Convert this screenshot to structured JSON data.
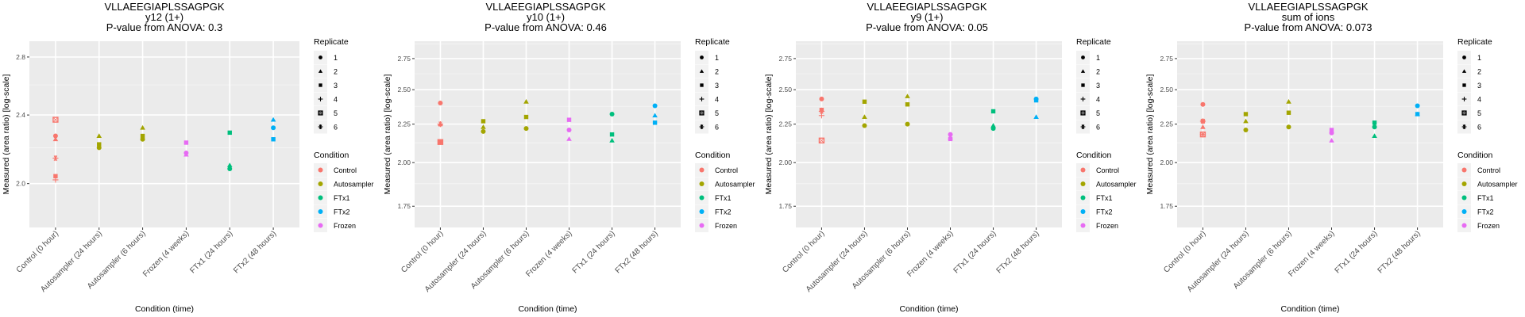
{
  "chart_data": {
    "shared": {
      "categories": [
        "Control (0 hour)",
        "Autosampler (24 hours)",
        "Autosampler (6 hours)",
        "Frozen (4 weeks)",
        "FTx1 (24 hours)",
        "FTx2 (48 hours)"
      ],
      "category_condition": [
        "Control",
        "Autosampler",
        "Autosampler",
        "Frozen",
        "FTx1",
        "FTx2"
      ],
      "xlabel": "Condition (time)",
      "ylabel": "Measured (area ratio) [log-scale]",
      "grid": true,
      "legend_placement": "right",
      "legends": {
        "replicate": {
          "title": "Replicate",
          "items": [
            {
              "label": "1",
              "shape": "circle"
            },
            {
              "label": "2",
              "shape": "triangle"
            },
            {
              "label": "3",
              "shape": "square"
            },
            {
              "label": "4",
              "shape": "plus"
            },
            {
              "label": "5",
              "shape": "square-cross"
            },
            {
              "label": "6",
              "shape": "asterisk"
            }
          ]
        },
        "condition": {
          "title": "Condition",
          "items": [
            {
              "label": "Control",
              "color": "#F8766D"
            },
            {
              "label": "Autosampler",
              "color": "#A3A500"
            },
            {
              "label": "FTx1",
              "color": "#00BF7D"
            },
            {
              "label": "FTx2",
              "color": "#00B0F6"
            },
            {
              "label": "Frozen",
              "color": "#E76BF3"
            }
          ]
        }
      }
    },
    "panels": [
      {
        "type": "scatter",
        "title": [
          "VLLAEEGIAPLSSAGPGK",
          "y12 (1+)",
          "P-value from ANOVA: 0.3"
        ],
        "yscale": "log",
        "ylim": [
          1.78,
          2.92
        ],
        "yticks": [
          2.0,
          2.4,
          2.8
        ],
        "ytick_labels": [
          "2.0",
          "2.4",
          "2.8"
        ],
        "yminor": [
          2.2,
          2.6
        ],
        "points": [
          [
            [
              1,
              2.27
            ],
            [
              2,
              2.25
            ],
            [
              3,
              2.04
            ],
            [
              4,
              2.02
            ],
            [
              5,
              2.37
            ],
            [
              6,
              2.14
            ]
          ],
          [
            [
              1,
              2.2
            ],
            [
              2,
              2.27
            ],
            [
              3,
              2.22
            ]
          ],
          [
            [
              1,
              2.25
            ],
            [
              2,
              2.32
            ],
            [
              3,
              2.27
            ]
          ],
          [
            [
              1,
              2.17
            ],
            [
              2,
              2.16
            ],
            [
              3,
              2.23
            ]
          ],
          [
            [
              1,
              2.08
            ],
            [
              2,
              2.1
            ],
            [
              3,
              2.29
            ]
          ],
          [
            [
              1,
              2.32
            ],
            [
              2,
              2.37
            ],
            [
              3,
              2.25
            ]
          ]
        ]
      },
      {
        "type": "scatter",
        "title": [
          "VLLAEEGIAPLSSAGPGK",
          "y10 (1+)",
          "P-value from ANOVA: 0.46"
        ],
        "yscale": "log",
        "ylim": [
          1.64,
          2.9
        ],
        "yticks": [
          1.75,
          2.0,
          2.25,
          2.5,
          2.75
        ],
        "ytick_labels": [
          "1.75",
          "2.00",
          "2.25",
          "2.50",
          "2.75"
        ],
        "yminor": [
          1.875,
          2.125,
          2.375,
          2.625,
          2.875
        ],
        "points": [
          [
            [
              1,
              2.4
            ],
            [
              2,
              2.25
            ],
            [
              3,
              2.13
            ],
            [
              4,
              2.25
            ],
            [
              5,
              2.13
            ],
            [
              6,
              2.25
            ]
          ],
          [
            [
              1,
              2.2
            ],
            [
              2,
              2.23
            ],
            [
              3,
              2.27
            ]
          ],
          [
            [
              1,
              2.22
            ],
            [
              2,
              2.41
            ],
            [
              3,
              2.3
            ]
          ],
          [
            [
              1,
              2.21
            ],
            [
              2,
              2.15
            ],
            [
              3,
              2.28
            ]
          ],
          [
            [
              1,
              2.32
            ],
            [
              2,
              2.14
            ],
            [
              3,
              2.18
            ]
          ],
          [
            [
              1,
              2.38
            ],
            [
              2,
              2.31
            ],
            [
              3,
              2.26
            ]
          ]
        ]
      },
      {
        "type": "scatter",
        "title": [
          "VLLAEEGIAPLSSAGPGK",
          "y9 (1+)",
          "P-value from ANOVA: 0.05"
        ],
        "yscale": "log",
        "ylim": [
          1.64,
          2.9
        ],
        "yticks": [
          1.75,
          2.0,
          2.25,
          2.5,
          2.75
        ],
        "ytick_labels": [
          "1.75",
          "2.00",
          "2.25",
          "2.50",
          "2.75"
        ],
        "yminor": [
          1.875,
          2.125,
          2.375,
          2.625,
          2.875
        ],
        "points": [
          [
            [
              1,
              2.43
            ],
            [
              2,
              2.35
            ],
            [
              3,
              2.35
            ],
            [
              4,
              2.31
            ],
            [
              5,
              2.14
            ],
            [
              6,
              2.34
            ]
          ],
          [
            [
              1,
              2.24
            ],
            [
              2,
              2.3
            ],
            [
              3,
              2.41
            ]
          ],
          [
            [
              1,
              2.25
            ],
            [
              2,
              2.45
            ],
            [
              3,
              2.39
            ]
          ],
          [
            [
              1,
              2.18
            ],
            [
              2,
              2.16
            ],
            [
              3,
              2.15
            ]
          ],
          [
            [
              1,
              2.22
            ],
            [
              2,
              2.24
            ],
            [
              3,
              2.34
            ]
          ],
          [
            [
              1,
              2.43
            ],
            [
              2,
              2.3
            ],
            [
              3,
              2.42
            ]
          ]
        ]
      },
      {
        "type": "scatter",
        "title": [
          "VLLAEEGIAPLSSAGPGK",
          "sum of ions",
          "P-value from ANOVA: 0.073"
        ],
        "yscale": "log",
        "ylim": [
          1.64,
          2.9
        ],
        "yticks": [
          1.75,
          2.0,
          2.25,
          2.5,
          2.75
        ],
        "ytick_labels": [
          "1.75",
          "2.00",
          "2.25",
          "2.50",
          "2.75"
        ],
        "yminor": [
          1.875,
          2.125,
          2.375,
          2.625,
          2.875
        ],
        "points": [
          [
            [
              1,
              2.39
            ],
            [
              2,
              2.23
            ],
            [
              3,
              2.27
            ],
            [
              4,
              2.18
            ],
            [
              5,
              2.18
            ],
            [
              6,
              2.27
            ]
          ],
          [
            [
              1,
              2.21
            ],
            [
              2,
              2.27
            ],
            [
              3,
              2.32
            ]
          ],
          [
            [
              1,
              2.23
            ],
            [
              2,
              2.41
            ],
            [
              3,
              2.33
            ]
          ],
          [
            [
              1,
              2.19
            ],
            [
              2,
              2.14
            ],
            [
              3,
              2.21
            ]
          ],
          [
            [
              1,
              2.23
            ],
            [
              2,
              2.17
            ],
            [
              3,
              2.26
            ]
          ],
          [
            [
              1,
              2.38
            ],
            [
              2,
              2.32
            ],
            [
              3,
              2.32
            ]
          ]
        ]
      }
    ]
  }
}
